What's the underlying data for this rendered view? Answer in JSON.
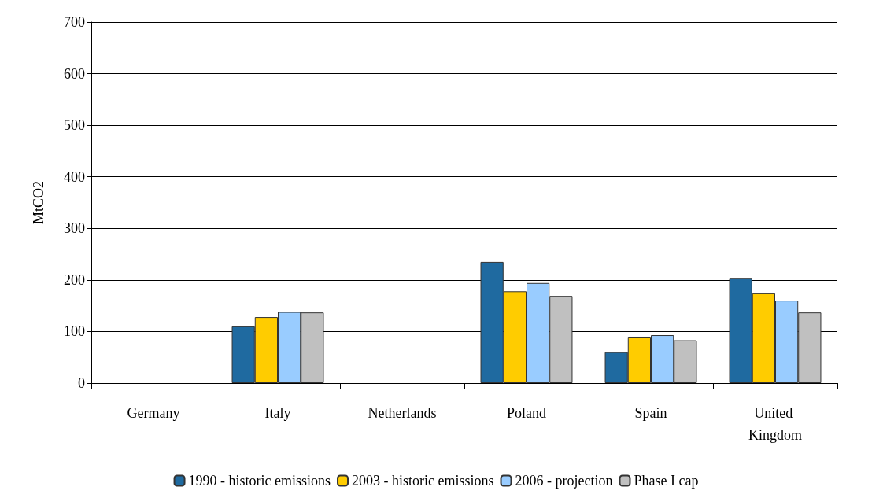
{
  "chart_data": {
    "type": "bar",
    "ylabel": "MtCO2",
    "categories": [
      "Germany",
      "Italy",
      "Netherlands",
      "Poland",
      "Spain",
      "United Kingdom"
    ],
    "series": [
      {
        "name": "1990 - historic emissions",
        "color": "#1f6aa0",
        "values": [
          null,
          110,
          null,
          235,
          60,
          204
        ]
      },
      {
        "name": "2003 - historic emissions",
        "color": "#ffcc00",
        "values": [
          null,
          128,
          null,
          178,
          90,
          174
        ]
      },
      {
        "name": "2006 - projection",
        "color": "#99ccff",
        "values": [
          null,
          138,
          null,
          194,
          93,
          160
        ]
      },
      {
        "name": "Phase I cap",
        "color": "#c0c0c0",
        "values": [
          null,
          137,
          null,
          169,
          83,
          137
        ]
      }
    ],
    "ylim": [
      0,
      700
    ],
    "yticks": [
      0,
      100,
      200,
      300,
      400,
      500,
      600,
      700
    ],
    "grid": "y",
    "legend": "bottom"
  }
}
